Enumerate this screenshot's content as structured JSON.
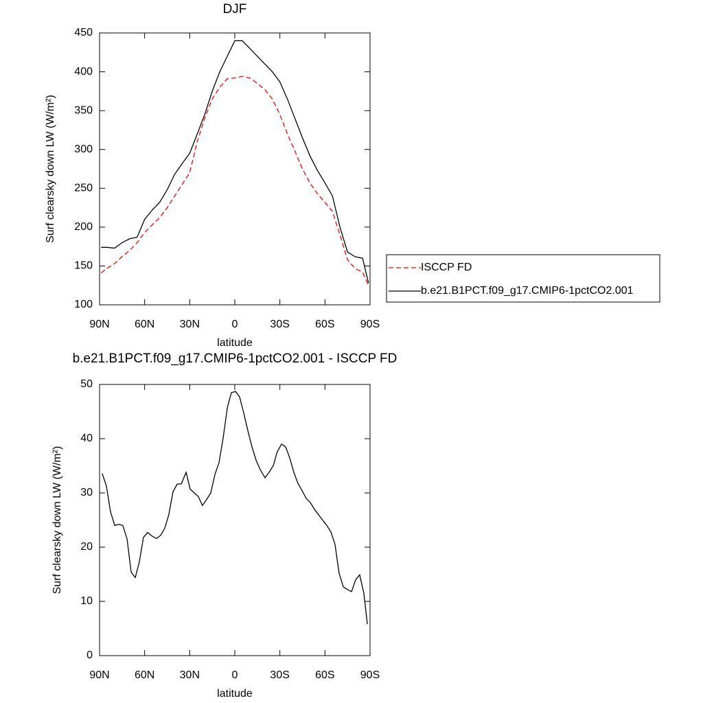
{
  "chart_data": [
    {
      "type": "line",
      "title": "DJF",
      "xlabel": "latitude",
      "ylabel": "Surf clearsky down LW (W/m²)",
      "x": [
        89,
        85,
        80,
        75,
        70,
        65,
        60,
        55,
        50,
        45,
        40,
        35,
        30,
        25,
        20,
        15,
        10,
        5,
        0,
        -5,
        -10,
        -15,
        -20,
        -25,
        -30,
        -35,
        -40,
        -45,
        -50,
        -55,
        -60,
        -65,
        -70,
        -75,
        -80,
        -85,
        -89
      ],
      "series": [
        {
          "name": "ISCCP FD",
          "color": "#ff0000",
          "dash": true,
          "values": [
            141,
            147,
            153,
            162,
            170,
            180,
            193,
            203,
            212,
            225,
            240,
            255,
            270,
            310,
            340,
            365,
            380,
            391,
            392,
            394,
            392,
            385,
            377,
            365,
            345,
            320,
            298,
            275,
            257,
            243,
            232,
            220,
            190,
            158,
            147,
            142,
            125
          ]
        },
        {
          "name": "b.e21.B1PCT.f09_g17.CMIP6-1pctCO2.001",
          "color": "#000000",
          "dash": false,
          "values": [
            174,
            174,
            173,
            180,
            185,
            187,
            210,
            222,
            232,
            248,
            268,
            282,
            295,
            320,
            345,
            375,
            400,
            420,
            440,
            440,
            430,
            420,
            410,
            400,
            387,
            365,
            340,
            315,
            292,
            273,
            257,
            240,
            200,
            168,
            162,
            160,
            128
          ]
        }
      ],
      "xlim": [
        90,
        -90
      ],
      "xticks": [
        {
          "value": 90,
          "label": "90N"
        },
        {
          "value": 60,
          "label": "60N"
        },
        {
          "value": 30,
          "label": "30N"
        },
        0,
        {
          "value": -30,
          "label": "30S"
        },
        {
          "value": -60,
          "label": "60S"
        },
        {
          "value": -90,
          "label": "90S"
        }
      ],
      "ylim": [
        100,
        450
      ],
      "yticks": [
        100,
        150,
        200,
        250,
        300,
        350,
        400,
        450
      ],
      "grid": false,
      "legend": "right"
    },
    {
      "type": "line",
      "title": "b.e21.B1PCT.f09_g17.CMIP6-1pctCO2.001 - ISCCP FD",
      "xlabel": "latitude",
      "ylabel": "Surf clearsky down LW (W/m²)",
      "x": [
        88.2,
        85.4,
        82.7,
        79.9,
        77.2,
        74.5,
        71.7,
        69.0,
        66.2,
        63.5,
        60.8,
        58.0,
        54.8,
        52.1,
        49.3,
        46.6,
        43.9,
        41.1,
        38.4,
        35.6,
        32.4,
        29.7,
        26.9,
        24.2,
        21.5,
        18.7,
        16.0,
        13.2,
        10.5,
        7.8,
        5.0,
        2.3,
        -0.5,
        -3.2,
        -5.9,
        -8.7,
        -11.4,
        -14.2,
        -16.9,
        -20.1,
        -22.8,
        -25.6,
        -28.3,
        -31.1,
        -33.8,
        -36.5,
        -39.3,
        -42.0,
        -44.8,
        -47.5,
        -50.3,
        -53.0,
        -55.7,
        -58.5,
        -61.2,
        -64.0,
        -66.7,
        -69.4,
        -72.2,
        -74.9,
        -77.7,
        -80.4,
        -83.1,
        -85.9,
        -88.2
      ],
      "values": [
        33.6,
        31.2,
        26.5,
        24.0,
        24.2,
        24.0,
        21.5,
        15.4,
        14.4,
        17.3,
        21.8,
        22.7,
        22.0,
        21.6,
        22.2,
        23.5,
        26.0,
        30.2,
        31.6,
        31.7,
        33.8,
        30.7,
        30.0,
        29.3,
        27.7,
        28.8,
        30.0,
        33.4,
        35.6,
        40.0,
        45.7,
        48.5,
        48.7,
        47.7,
        44.8,
        41.5,
        38.5,
        36.0,
        34.3,
        32.8,
        33.8,
        35.0,
        37.6,
        39.0,
        38.5,
        36.5,
        33.8,
        31.8,
        30.4,
        29.0,
        28.2,
        27.0,
        26.0,
        25.0,
        24.0,
        22.8,
        20.5,
        15.2,
        12.7,
        12.2,
        11.8,
        14.0,
        14.9,
        11.5,
        5.8
      ],
      "color": "#000000",
      "xlim": [
        90,
        -90
      ],
      "xticks": [
        {
          "value": 90,
          "label": "90N"
        },
        {
          "value": 60,
          "label": "60N"
        },
        {
          "value": 30,
          "label": "30N"
        },
        0,
        {
          "value": -30,
          "label": "30S"
        },
        {
          "value": -60,
          "label": "60S"
        },
        {
          "value": -90,
          "label": "90S"
        }
      ],
      "ylim": [
        0,
        50
      ],
      "yticks": [
        0,
        10,
        20,
        30,
        40,
        50
      ],
      "grid": false
    }
  ]
}
